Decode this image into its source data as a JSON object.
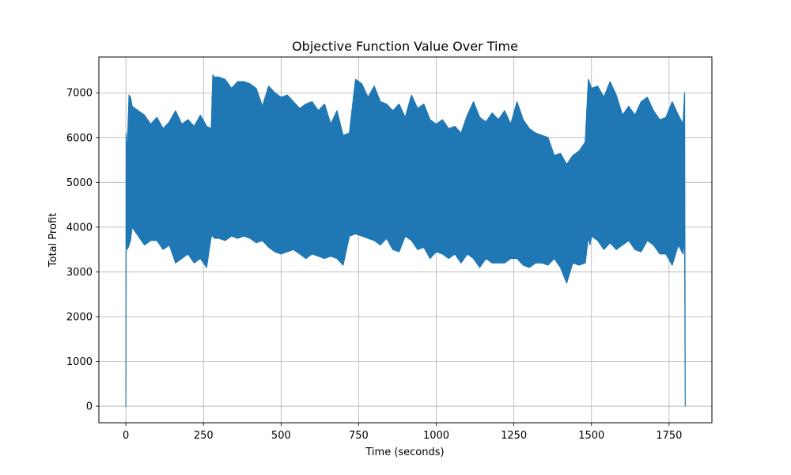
{
  "chart_data": {
    "type": "line",
    "title": "Objective Function Value Over Time",
    "xlabel": "Time (seconds)",
    "ylabel": "Total Profit",
    "xlim": [
      -87,
      1888
    ],
    "ylim": [
      -370,
      7800
    ],
    "x_ticks": [
      0,
      250,
      500,
      750,
      1000,
      1250,
      1500,
      1750
    ],
    "x_tick_labels": [
      "0",
      "250",
      "500",
      "750",
      "1000",
      "1250",
      "1500",
      "1750"
    ],
    "y_ticks": [
      0,
      1000,
      2000,
      3000,
      4000,
      5000,
      6000,
      7000
    ],
    "y_tick_labels": [
      "0",
      "1000",
      "2000",
      "3000",
      "4000",
      "5000",
      "6000",
      "7000"
    ],
    "grid": true,
    "line_color": "#1f77b4",
    "series": [
      {
        "x": [
          0,
          1,
          2,
          5,
          10,
          15,
          20,
          40,
          60,
          80,
          100,
          120,
          140,
          160,
          180,
          200,
          220,
          240,
          260,
          275,
          280,
          285,
          300,
          320,
          340,
          360,
          380,
          400,
          420,
          440,
          460,
          480,
          500,
          520,
          540,
          560,
          580,
          600,
          620,
          640,
          660,
          680,
          700,
          720,
          740,
          760,
          780,
          800,
          820,
          840,
          860,
          880,
          900,
          920,
          940,
          960,
          980,
          1000,
          1020,
          1040,
          1060,
          1080,
          1100,
          1120,
          1140,
          1160,
          1180,
          1200,
          1220,
          1240,
          1260,
          1280,
          1300,
          1320,
          1340,
          1360,
          1380,
          1400,
          1420,
          1440,
          1460,
          1480,
          1490,
          1495,
          1500,
          1520,
          1540,
          1560,
          1580,
          1600,
          1620,
          1640,
          1660,
          1680,
          1700,
          1720,
          1740,
          1760,
          1780,
          1795,
          1800,
          1802
        ],
        "upper": [
          0,
          6100,
          5900,
          5850,
          6950,
          6900,
          6700,
          6600,
          6500,
          6300,
          6450,
          6200,
          6350,
          6600,
          6300,
          6400,
          6250,
          6500,
          6250,
          6200,
          7400,
          7350,
          7350,
          7300,
          7100,
          7250,
          7250,
          7200,
          7100,
          6700,
          7150,
          7000,
          6900,
          6950,
          6800,
          6650,
          6750,
          6800,
          6600,
          6750,
          6300,
          6600,
          6050,
          6100,
          7300,
          7200,
          6900,
          7150,
          6800,
          6750,
          6600,
          6750,
          6450,
          6950,
          6650,
          6750,
          6400,
          6300,
          6400,
          6200,
          6250,
          6100,
          6500,
          6800,
          6450,
          6350,
          6550,
          6400,
          6600,
          6300,
          6800,
          6400,
          6200,
          6100,
          6050,
          6000,
          5600,
          5650,
          5400,
          5600,
          5700,
          5900,
          7300,
          7200,
          7100,
          7150,
          6900,
          7250,
          6950,
          6500,
          6700,
          6500,
          6800,
          6900,
          6600,
          6400,
          6450,
          6800,
          6500,
          6300,
          7000,
          0
        ],
        "lower": [
          0,
          4000,
          3700,
          3500,
          3600,
          3700,
          4000,
          3800,
          3600,
          3700,
          3700,
          3500,
          3600,
          3200,
          3300,
          3400,
          3200,
          3300,
          3100,
          3800,
          3800,
          3750,
          3750,
          3700,
          3800,
          3750,
          3800,
          3750,
          3650,
          3700,
          3550,
          3450,
          3400,
          3450,
          3500,
          3400,
          3300,
          3400,
          3350,
          3300,
          3350,
          3300,
          3150,
          3800,
          3850,
          3800,
          3750,
          3700,
          3600,
          3750,
          3500,
          3450,
          3800,
          3700,
          3500,
          3550,
          3300,
          3450,
          3400,
          3300,
          3400,
          3200,
          3400,
          3300,
          3100,
          3300,
          3200,
          3200,
          3200,
          3300,
          3300,
          3150,
          3100,
          3200,
          3200,
          3150,
          3300,
          3100,
          2750,
          3200,
          3150,
          3200,
          3800,
          3600,
          3800,
          3700,
          3500,
          3650,
          3500,
          3600,
          3700,
          3500,
          3450,
          3700,
          3600,
          3400,
          3400,
          3150,
          3600,
          3400,
          3750,
          0
        ]
      }
    ]
  }
}
